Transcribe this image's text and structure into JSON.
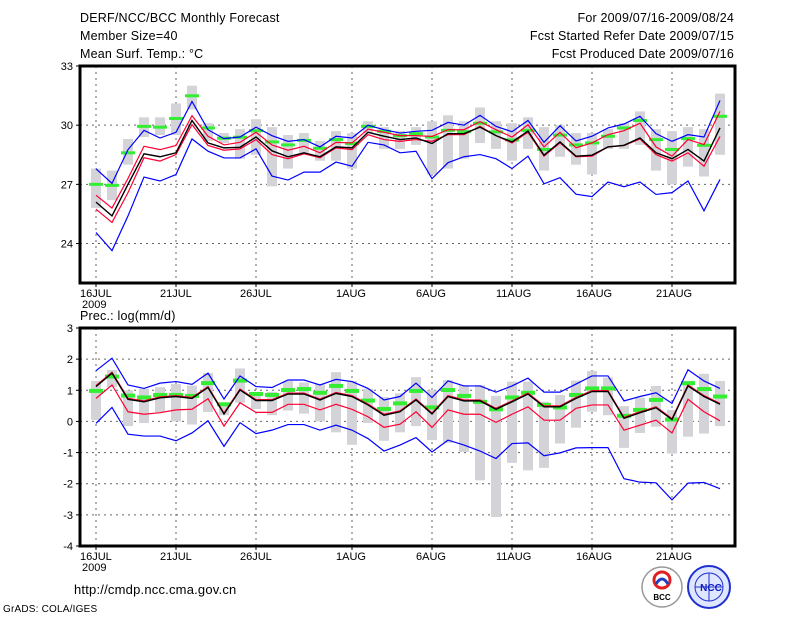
{
  "header": {
    "title": "DERF/NCC/BCC Monthly Forecast",
    "member_size": "Member Size=40",
    "variable": "Mean Surf. Temp.: °C",
    "period": "For 2009/07/16-2009/08/24",
    "start_date": "Fcst Started Refer Date 2009/07/15",
    "produced_date": "Fcst Produced Date 2009/07/16"
  },
  "footer": {
    "url": "http://cmdp.ncc.cma.gov.cn",
    "credit": "GrADS: COLA/IGES",
    "logo_bcc": "BCC",
    "logo_ncc": "NCC"
  },
  "colors": {
    "max_min": "#0000ff",
    "spread": "#ff0033",
    "mean": "#000000",
    "reference": "#33ee33",
    "range_bar": "#d3d3d8"
  },
  "chart_data": [
    {
      "type": "line",
      "title": "Mean Surf. Temp.: °C",
      "ylabel": "",
      "ylim": [
        22,
        33
      ],
      "yticks": [
        24,
        27,
        30,
        33
      ],
      "xlabel": "",
      "x_tick_labels": [
        {
          "day": 0,
          "label": "16JUL",
          "sub": "2009"
        },
        {
          "day": 5,
          "label": "21JUL"
        },
        {
          "day": 10,
          "label": "26JUL"
        },
        {
          "day": 16,
          "label": "1AUG"
        },
        {
          "day": 21,
          "label": "6AUG"
        },
        {
          "day": 26,
          "label": "11AUG"
        },
        {
          "day": 31,
          "label": "16AUG"
        },
        {
          "day": 36,
          "label": "21AUG"
        }
      ],
      "grid": true,
      "days": 40,
      "series": {
        "blue_upper": [
          27.79,
          27.05,
          28.76,
          29.74,
          29.35,
          29.64,
          31.2,
          29.77,
          29.32,
          29.4,
          29.9,
          29.47,
          29.18,
          29.27,
          28.9,
          29.44,
          29.35,
          30.0,
          29.77,
          29.6,
          29.69,
          29.74,
          30.14,
          30.0,
          30.5,
          29.94,
          29.67,
          30.24,
          29.13,
          29.97,
          29.2,
          29.44,
          29.86,
          30.06,
          30.45,
          29.57,
          29.18,
          29.52,
          29.4,
          31.25
        ],
        "red_upper": [
          26.45,
          25.8,
          27.3,
          28.93,
          28.76,
          28.97,
          30.48,
          29.44,
          29.0,
          29.13,
          29.64,
          29.0,
          28.73,
          28.93,
          28.6,
          29.13,
          29.1,
          29.8,
          29.64,
          29.47,
          29.47,
          29.43,
          29.77,
          29.77,
          30.18,
          29.77,
          29.4,
          30.02,
          28.9,
          29.64,
          28.85,
          29.1,
          29.52,
          29.72,
          30.1,
          28.9,
          28.43,
          29.27,
          29.02,
          30.7
        ],
        "mean": [
          26.1,
          25.4,
          27.0,
          28.55,
          28.4,
          28.6,
          30.24,
          29.1,
          28.85,
          28.88,
          29.4,
          28.7,
          28.4,
          28.6,
          28.4,
          28.9,
          28.85,
          29.64,
          29.44,
          29.27,
          29.35,
          29.07,
          29.57,
          29.57,
          29.9,
          29.47,
          29.15,
          29.7,
          28.48,
          29.15,
          28.43,
          28.48,
          28.9,
          28.98,
          29.35,
          28.6,
          28.3,
          28.77,
          28.18,
          29.86
        ],
        "red_lower": [
          25.74,
          25.07,
          26.58,
          28.35,
          28.18,
          28.51,
          30.03,
          28.97,
          28.73,
          28.8,
          29.27,
          28.51,
          28.3,
          28.55,
          28.35,
          28.85,
          28.76,
          29.52,
          29.27,
          29.18,
          29.27,
          29.18,
          29.52,
          29.52,
          29.94,
          29.47,
          29.1,
          29.64,
          28.43,
          29.1,
          28.4,
          28.43,
          28.9,
          28.97,
          29.3,
          28.51,
          28.18,
          28.6,
          27.92,
          29.43
        ],
        "blue_lower": [
          24.56,
          23.64,
          25.4,
          27.37,
          27.17,
          27.5,
          29.3,
          28.68,
          28.34,
          28.34,
          28.8,
          27.42,
          27.22,
          27.62,
          27.62,
          28.13,
          27.92,
          29.13,
          29.0,
          28.6,
          28.68,
          27.29,
          28.1,
          28.4,
          28.51,
          28.3,
          27.8,
          28.43,
          27.03,
          27.34,
          26.5,
          26.38,
          27.12,
          26.88,
          27.12,
          26.49,
          26.58,
          27.17,
          25.66,
          27.25
        ],
        "green": [
          27.0,
          26.95,
          28.6,
          29.94,
          29.9,
          30.34,
          31.49,
          29.86,
          29.34,
          29.39,
          29.72,
          29.15,
          29.0,
          29.23,
          28.83,
          29.27,
          29.07,
          29.94,
          29.69,
          29.47,
          29.57,
          29.4,
          29.74,
          29.67,
          30.1,
          29.66,
          29.25,
          29.74,
          28.77,
          29.5,
          29.0,
          29.1,
          29.44,
          29.86,
          30.24,
          29.27,
          28.77,
          29.32,
          28.98,
          30.45
        ],
        "bar_low": [
          25.8,
          26.2,
          28.0,
          29.4,
          29.5,
          29.5,
          30.8,
          29.2,
          29.1,
          28.3,
          28.5,
          26.9,
          27.8,
          28.6,
          28.2,
          28.2,
          27.8,
          29.6,
          28.8,
          28.8,
          29.0,
          27.5,
          27.8,
          28.3,
          29.1,
          28.8,
          28.2,
          28.8,
          27.7,
          28.4,
          28.0,
          27.5,
          28.8,
          28.8,
          29.0,
          27.7,
          27.0,
          27.9,
          27.4,
          28.5
        ],
        "bar_high": [
          27.8,
          27.7,
          29.3,
          30.4,
          30.4,
          31.1,
          32.0,
          30.1,
          29.6,
          29.8,
          30.3,
          29.9,
          29.5,
          29.6,
          29.2,
          29.7,
          29.6,
          30.2,
          29.9,
          29.7,
          29.9,
          30.2,
          30.5,
          30.2,
          30.9,
          30.2,
          30.1,
          30.4,
          29.9,
          30.0,
          29.6,
          29.6,
          29.8,
          30.1,
          30.7,
          29.8,
          29.7,
          29.9,
          29.8,
          31.6
        ]
      }
    },
    {
      "type": "line",
      "title": "Prec.: log(mm/d)",
      "ylabel": "",
      "ylim": [
        -4,
        3
      ],
      "yticks": [
        -4,
        -3,
        -2,
        -1,
        0,
        1,
        2,
        3
      ],
      "xlabel": "",
      "x_tick_labels": [
        {
          "day": 0,
          "label": "16JUL",
          "sub": "2009"
        },
        {
          "day": 5,
          "label": "21JUL"
        },
        {
          "day": 10,
          "label": "26JUL"
        },
        {
          "day": 16,
          "label": "1AUG"
        },
        {
          "day": 21,
          "label": "6AUG"
        },
        {
          "day": 26,
          "label": "11AUG"
        },
        {
          "day": 31,
          "label": "16AUG"
        },
        {
          "day": 36,
          "label": "21AUG"
        }
      ],
      "grid": true,
      "days": 40,
      "series": {
        "blue_upper": [
          1.63,
          2.03,
          1.17,
          1.06,
          1.23,
          1.28,
          1.19,
          1.55,
          0.72,
          1.46,
          1.12,
          1.09,
          1.33,
          1.33,
          1.17,
          1.35,
          1.28,
          1.06,
          0.69,
          0.8,
          1.23,
          0.77,
          1.3,
          1.14,
          1.14,
          0.94,
          1.14,
          1.39,
          0.94,
          0.94,
          1.2,
          1.46,
          1.46,
          0.66,
          0.8,
          0.92,
          0.58,
          1.66,
          1.3,
          1.06
        ],
        "red_upper": [
          1.15,
          1.58,
          0.74,
          0.66,
          0.79,
          0.83,
          0.77,
          1.12,
          0.27,
          1.04,
          0.7,
          0.7,
          0.91,
          0.91,
          0.72,
          0.93,
          0.83,
          0.56,
          0.23,
          0.34,
          0.72,
          0.27,
          0.83,
          0.69,
          0.69,
          0.42,
          0.66,
          0.91,
          0.5,
          0.5,
          0.77,
          0.99,
          0.99,
          0.13,
          0.31,
          0.47,
          0.09,
          1.17,
          0.83,
          0.58
        ],
        "mean": [
          1.12,
          1.55,
          0.71,
          0.63,
          0.76,
          0.8,
          0.74,
          1.09,
          0.24,
          1.01,
          0.67,
          0.67,
          0.88,
          0.88,
          0.69,
          0.9,
          0.8,
          0.53,
          0.2,
          0.31,
          0.69,
          0.24,
          0.8,
          0.66,
          0.66,
          0.39,
          0.63,
          0.88,
          0.47,
          0.47,
          0.74,
          0.96,
          0.96,
          0.1,
          0.28,
          0.44,
          0.06,
          1.14,
          0.8,
          0.55
        ],
        "red_lower": [
          0.74,
          1.17,
          0.31,
          0.23,
          0.28,
          0.37,
          0.39,
          0.73,
          -0.15,
          0.6,
          0.29,
          0.29,
          0.55,
          0.55,
          0.37,
          0.55,
          0.39,
          0.15,
          -0.19,
          -0.09,
          0.31,
          -0.19,
          0.37,
          0.23,
          0.23,
          -0.03,
          0.23,
          0.47,
          0.04,
          0.04,
          0.42,
          0.53,
          0.53,
          -0.28,
          -0.12,
          0.04,
          -0.37,
          0.71,
          0.31,
          0.02
        ],
        "blue_lower": [
          -0.06,
          0.45,
          -0.41,
          -0.47,
          -0.47,
          -0.62,
          -0.37,
          0.02,
          -0.8,
          -0.04,
          -0.39,
          -0.28,
          -0.1,
          -0.1,
          -0.28,
          -0.12,
          -0.28,
          -0.55,
          -0.95,
          -0.76,
          -0.52,
          -0.98,
          -0.6,
          -0.76,
          -0.95,
          -1.19,
          -0.71,
          -0.69,
          -1.1,
          -1.01,
          -0.85,
          -0.84,
          -0.84,
          -1.84,
          -1.95,
          -1.97,
          -2.52,
          -1.98,
          -1.96,
          -2.16
        ],
        "green": [
          0.98,
          1.44,
          0.83,
          0.77,
          0.85,
          0.85,
          0.82,
          1.23,
          0.55,
          1.31,
          0.88,
          0.85,
          1.01,
          1.04,
          0.92,
          1.14,
          0.98,
          0.67,
          0.4,
          0.58,
          0.98,
          0.45,
          1.01,
          0.82,
          0.63,
          0.39,
          0.77,
          0.92,
          0.53,
          0.45,
          0.85,
          1.06,
          1.06,
          0.18,
          0.37,
          0.69,
          0.06,
          1.23,
          1.04,
          0.8
        ],
        "bar_low": [
          0.05,
          1.1,
          -0.15,
          -0.05,
          0.3,
          0.0,
          -0.1,
          0.3,
          0.2,
          0.6,
          0.4,
          0.2,
          0.35,
          0.25,
          0.0,
          -0.35,
          -0.75,
          -0.05,
          -0.62,
          -0.35,
          -0.15,
          -0.6,
          -0.69,
          -0.98,
          -1.89,
          -3.07,
          -1.33,
          -1.57,
          -1.49,
          -0.71,
          -0.2,
          0.31,
          0.2,
          -0.85,
          -0.37,
          -0.17,
          -1.03,
          -0.49,
          -0.39,
          -0.15
        ],
        "bar_high": [
          1.3,
          1.65,
          1.0,
          1.05,
          1.1,
          1.2,
          1.15,
          1.55,
          0.6,
          1.7,
          0.95,
          0.95,
          1.3,
          1.25,
          1.2,
          1.58,
          1.3,
          1.05,
          0.78,
          0.9,
          1.42,
          1.0,
          1.33,
          1.17,
          1.17,
          0.82,
          1.28,
          1.28,
          0.63,
          0.85,
          1.31,
          1.62,
          1.41,
          0.49,
          0.76,
          1.14,
          0.37,
          1.3,
          1.53,
          1.3
        ]
      }
    }
  ]
}
